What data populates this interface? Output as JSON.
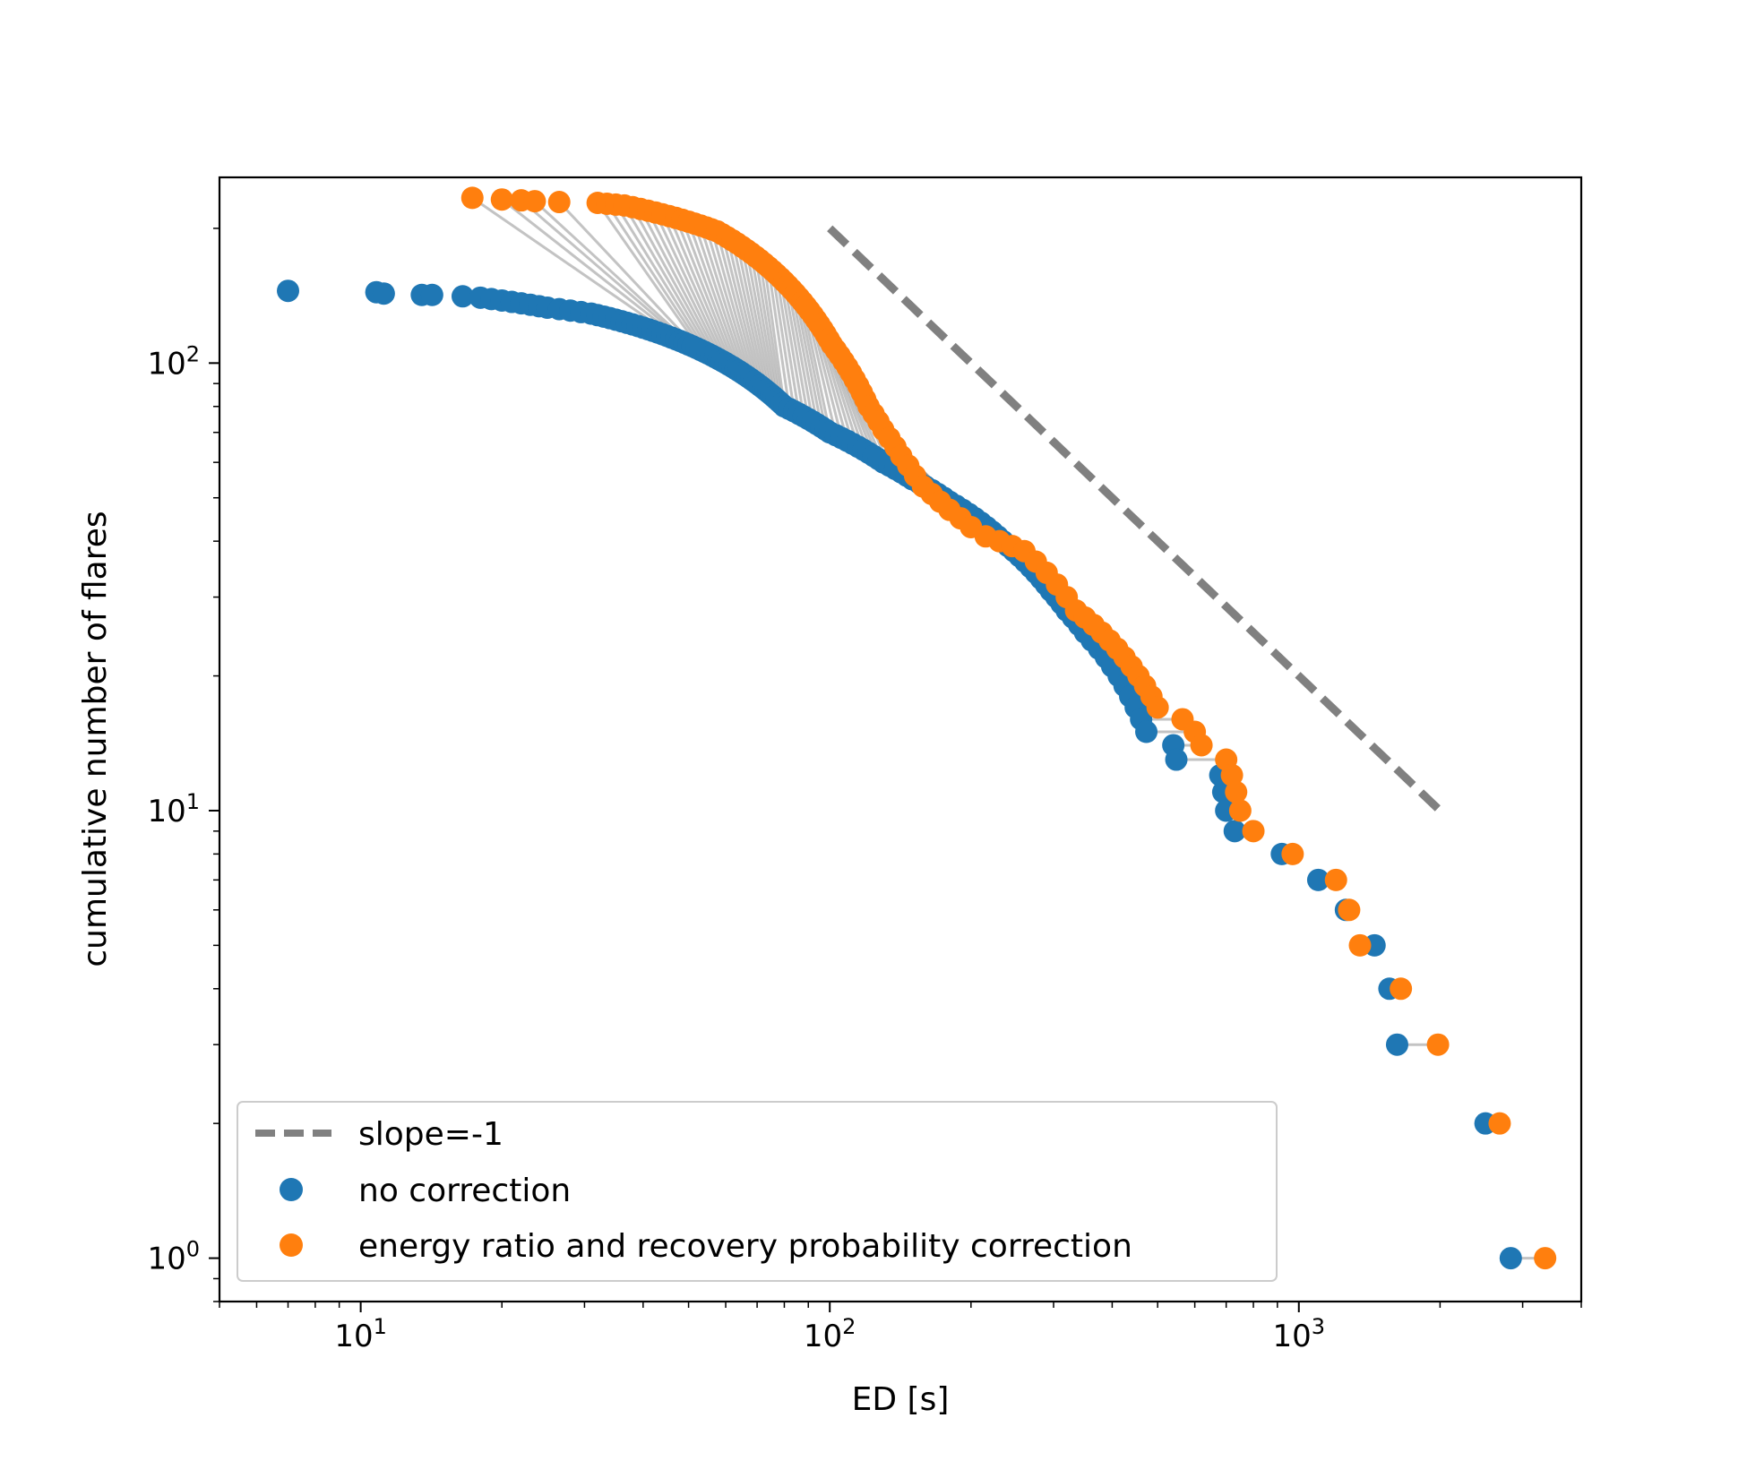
{
  "chart_data": {
    "type": "scatter",
    "title": "",
    "xlabel": "ED [s]",
    "ylabel": "cumulative number of flares",
    "xscale": "log",
    "yscale": "log",
    "xlim": [
      5,
      4000
    ],
    "ylim": [
      0.8,
      260
    ],
    "x_ticks": [
      {
        "base": "10",
        "exp": "1",
        "value": 10
      },
      {
        "base": "10",
        "exp": "2",
        "value": 100
      },
      {
        "base": "10",
        "exp": "3",
        "value": 1000
      }
    ],
    "y_ticks": [
      {
        "base": "10",
        "exp": "0",
        "value": 1
      },
      {
        "base": "10",
        "exp": "1",
        "value": 10
      },
      {
        "base": "10",
        "exp": "2",
        "value": 100
      }
    ],
    "legend_position": "lower-left",
    "connector_color": "#888888",
    "reference_line": {
      "name": "slope=-1",
      "color": "#808080",
      "style": "dashed",
      "x": [
        100,
        2000
      ],
      "y": [
        200,
        10
      ]
    },
    "series": [
      {
        "name": "no correction",
        "color": "#1f77b4",
        "points": [
          [
            7.0,
            145
          ],
          [
            10.8,
            144
          ],
          [
            11.2,
            143
          ],
          [
            13.5,
            142
          ],
          [
            14.2,
            142
          ],
          [
            16.5,
            141
          ],
          [
            18.0,
            140
          ],
          [
            19.0,
            139
          ],
          [
            20.0,
            138
          ],
          [
            21.0,
            137
          ],
          [
            22.0,
            136
          ],
          [
            23.0,
            135
          ],
          [
            24.0,
            134
          ],
          [
            25.0,
            133
          ],
          [
            26.5,
            132
          ],
          [
            28.0,
            131
          ],
          [
            29.5,
            130
          ],
          [
            31.0,
            129
          ],
          [
            32.0,
            128
          ],
          [
            33.0,
            127
          ],
          [
            34.0,
            126
          ],
          [
            35.0,
            125
          ],
          [
            36.0,
            124
          ],
          [
            37.0,
            123
          ],
          [
            38.0,
            122
          ],
          [
            39.0,
            121
          ],
          [
            40.0,
            120
          ],
          [
            41.0,
            119
          ],
          [
            42.0,
            118
          ],
          [
            43.0,
            117
          ],
          [
            44.0,
            116
          ],
          [
            45.0,
            115
          ],
          [
            46.0,
            114
          ],
          [
            47.0,
            113
          ],
          [
            48.0,
            112
          ],
          [
            49.0,
            111
          ],
          [
            50.0,
            110
          ],
          [
            51.0,
            109
          ],
          [
            52.0,
            108
          ],
          [
            53.0,
            107
          ],
          [
            54.0,
            106
          ],
          [
            55.0,
            105
          ],
          [
            56.0,
            104
          ],
          [
            57.0,
            103
          ],
          [
            58.0,
            102
          ],
          [
            59.0,
            101
          ],
          [
            60.0,
            100
          ],
          [
            61.0,
            99
          ],
          [
            62.0,
            98
          ],
          [
            63.0,
            97
          ],
          [
            64.0,
            96
          ],
          [
            65.0,
            95
          ],
          [
            66.0,
            94
          ],
          [
            67.0,
            93
          ],
          [
            68.0,
            92
          ],
          [
            69.0,
            91
          ],
          [
            70.0,
            90
          ],
          [
            71.0,
            89
          ],
          [
            72.0,
            88
          ],
          [
            73.0,
            87
          ],
          [
            74.0,
            86
          ],
          [
            75.0,
            85
          ],
          [
            76.0,
            84
          ],
          [
            77.0,
            83
          ],
          [
            78.0,
            82
          ],
          [
            79.0,
            81
          ],
          [
            80.0,
            80
          ],
          [
            82.0,
            79
          ],
          [
            84.0,
            78
          ],
          [
            86.0,
            77
          ],
          [
            88.0,
            76
          ],
          [
            90.0,
            75
          ],
          [
            92.0,
            74
          ],
          [
            94.0,
            73
          ],
          [
            96.0,
            72
          ],
          [
            98.0,
            71
          ],
          [
            100.0,
            70
          ],
          [
            103.0,
            69
          ],
          [
            106.0,
            68
          ],
          [
            109.0,
            67
          ],
          [
            112.0,
            66
          ],
          [
            115.0,
            65
          ],
          [
            118.0,
            64
          ],
          [
            121.0,
            63
          ],
          [
            124.0,
            62
          ],
          [
            127.0,
            61
          ],
          [
            130.0,
            60
          ],
          [
            134.0,
            59
          ],
          [
            138.0,
            58
          ],
          [
            142.0,
            57
          ],
          [
            146.0,
            56
          ],
          [
            150.0,
            55
          ],
          [
            155.0,
            54
          ],
          [
            160.0,
            53
          ],
          [
            165.0,
            52
          ],
          [
            170.0,
            51
          ],
          [
            175.0,
            50
          ],
          [
            180.0,
            49
          ],
          [
            186.0,
            48
          ],
          [
            192.0,
            47
          ],
          [
            198.0,
            46
          ],
          [
            204.0,
            45
          ],
          [
            210.0,
            44
          ],
          [
            216.0,
            43
          ],
          [
            222.0,
            42
          ],
          [
            228.0,
            41
          ],
          [
            234.0,
            40
          ],
          [
            240.0,
            39
          ],
          [
            247.0,
            38
          ],
          [
            254.0,
            37
          ],
          [
            261.0,
            36
          ],
          [
            268.0,
            35
          ],
          [
            275.0,
            34
          ],
          [
            282.0,
            33
          ],
          [
            289.0,
            32
          ],
          [
            296.0,
            31
          ],
          [
            304.0,
            30
          ],
          [
            312.0,
            29
          ],
          [
            320.0,
            28
          ],
          [
            330.0,
            27
          ],
          [
            340.0,
            26
          ],
          [
            350.0,
            25
          ],
          [
            362.0,
            24
          ],
          [
            375.0,
            23
          ],
          [
            388.0,
            22
          ],
          [
            400.0,
            21
          ],
          [
            413.0,
            20
          ],
          [
            425.0,
            19
          ],
          [
            437.0,
            18
          ],
          [
            449.0,
            17
          ],
          [
            461.0,
            16
          ],
          [
            473.0,
            15
          ],
          [
            540.0,
            14
          ],
          [
            548.0,
            13
          ],
          [
            680.0,
            12
          ],
          [
            690.0,
            11
          ],
          [
            700.0,
            10
          ],
          [
            730.0,
            9
          ],
          [
            920.0,
            8
          ],
          [
            1100.0,
            7
          ],
          [
            1260.0,
            6
          ],
          [
            1450.0,
            5
          ],
          [
            1560.0,
            4
          ],
          [
            1620.0,
            3
          ],
          [
            2500.0,
            2
          ],
          [
            2830.0,
            1
          ]
        ]
      },
      {
        "name": "energy ratio and recovery probability correction",
        "color": "#ff7f0e",
        "points": [
          [
            17.3,
            234
          ],
          [
            20.0,
            232
          ],
          [
            22.0,
            231
          ],
          [
            23.5,
            230
          ],
          [
            26.5,
            229
          ],
          [
            32.0,
            228
          ],
          [
            33.5,
            227
          ],
          [
            35.0,
            226
          ],
          [
            36.5,
            225
          ],
          [
            38.0,
            223
          ],
          [
            39.5,
            221
          ],
          [
            41.0,
            219
          ],
          [
            42.5,
            217
          ],
          [
            44.0,
            215
          ],
          [
            45.5,
            213
          ],
          [
            47.0,
            211
          ],
          [
            48.5,
            209
          ],
          [
            50.0,
            207
          ],
          [
            51.5,
            205
          ],
          [
            53.0,
            203
          ],
          [
            54.5,
            201
          ],
          [
            56.0,
            199
          ],
          [
            57.5,
            197
          ],
          [
            59.0,
            194
          ],
          [
            60.5,
            191
          ],
          [
            62.0,
            188
          ],
          [
            63.5,
            185
          ],
          [
            65.0,
            182
          ],
          [
            66.5,
            179
          ],
          [
            68.0,
            176
          ],
          [
            69.5,
            173
          ],
          [
            71.0,
            170
          ],
          [
            72.5,
            167
          ],
          [
            74.0,
            164
          ],
          [
            75.5,
            161
          ],
          [
            77.0,
            158
          ],
          [
            78.5,
            155
          ],
          [
            80.0,
            152
          ],
          [
            81.5,
            149
          ],
          [
            83.0,
            146
          ],
          [
            84.5,
            143
          ],
          [
            86.0,
            140
          ],
          [
            87.5,
            137
          ],
          [
            89.0,
            134
          ],
          [
            90.5,
            131
          ],
          [
            92.0,
            128
          ],
          [
            93.5,
            125
          ],
          [
            95.0,
            122
          ],
          [
            96.5,
            119
          ],
          [
            98.0,
            116
          ],
          [
            99.5,
            113
          ],
          [
            101.0,
            110
          ],
          [
            103.0,
            107
          ],
          [
            105.0,
            104
          ],
          [
            107.0,
            101
          ],
          [
            109.0,
            98
          ],
          [
            111.0,
            95
          ],
          [
            113.0,
            92
          ],
          [
            115.0,
            89
          ],
          [
            117.0,
            86
          ],
          [
            119.0,
            83
          ],
          [
            121.0,
            80
          ],
          [
            124.0,
            77
          ],
          [
            127.0,
            74
          ],
          [
            130.0,
            71
          ],
          [
            134.0,
            68
          ],
          [
            138.0,
            65
          ],
          [
            142.0,
            62
          ],
          [
            147.0,
            59
          ],
          [
            152.0,
            56
          ],
          [
            158.0,
            53
          ],
          [
            165.0,
            51
          ],
          [
            172.0,
            49
          ],
          [
            180.0,
            47
          ],
          [
            190.0,
            45
          ],
          [
            200.0,
            43
          ],
          [
            215.0,
            41
          ],
          [
            230.0,
            40
          ],
          [
            245.0,
            39
          ],
          [
            260.0,
            38
          ],
          [
            275.0,
            36
          ],
          [
            290.0,
            34
          ],
          [
            305.0,
            32
          ],
          [
            320.0,
            30
          ],
          [
            335.0,
            28
          ],
          [
            350.0,
            27
          ],
          [
            365.0,
            26
          ],
          [
            380.0,
            25
          ],
          [
            395.0,
            24
          ],
          [
            410.0,
            23
          ],
          [
            425.0,
            22
          ],
          [
            440.0,
            21
          ],
          [
            455.0,
            20
          ],
          [
            470.0,
            19
          ],
          [
            485.0,
            18
          ],
          [
            500.0,
            17
          ],
          [
            565.0,
            16
          ],
          [
            600.0,
            15
          ],
          [
            620.0,
            14
          ],
          [
            700.0,
            13
          ],
          [
            720.0,
            12
          ],
          [
            735.0,
            11
          ],
          [
            750.0,
            10
          ],
          [
            800.0,
            9
          ],
          [
            970.0,
            8
          ],
          [
            1200.0,
            7
          ],
          [
            1280.0,
            6
          ],
          [
            1350.0,
            5
          ],
          [
            1650.0,
            4
          ],
          [
            1980.0,
            3
          ],
          [
            2680.0,
            2
          ],
          [
            3350.0,
            1
          ]
        ]
      }
    ]
  }
}
